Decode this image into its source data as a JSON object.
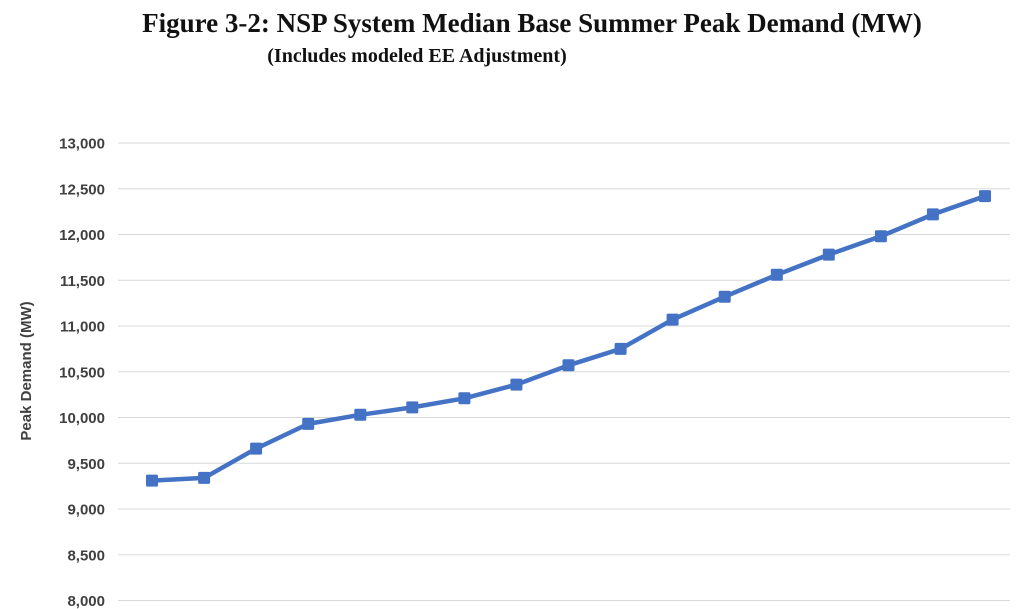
{
  "figure": {
    "title": "Figure 3-2: NSP System Median Base Summer Peak Demand (MW)",
    "subtitle": "(Includes modeled EE Adjustment)"
  },
  "chart_data": {
    "type": "line",
    "title": "Figure 3-2: NSP System Median Base Summer Peak Demand (MW)",
    "subtitle": "(Includes modeled EE Adjustment)",
    "ylabel": "Peak Demand (MW)",
    "xlabel": "",
    "ylim": [
      8000,
      13000
    ],
    "ytick_step": 500,
    "ytick_labels": [
      "8,000",
      "8,500",
      "9,000",
      "9,500",
      "10,000",
      "10,500",
      "11,000",
      "11,500",
      "12,000",
      "12,500",
      "13,000"
    ],
    "grid": true,
    "legend_position": "none",
    "marker": "square",
    "series": [
      {
        "name": "Median Base Summer Peak Demand",
        "values": [
          9310,
          9340,
          9660,
          9930,
          10030,
          10110,
          10210,
          10360,
          10570,
          10750,
          11070,
          11320,
          11560,
          11780,
          11980,
          12220,
          12420
        ]
      }
    ],
    "colors": {
      "line": "#4472C4",
      "grid": "#D9D9D9",
      "axis_text": "#404040"
    }
  }
}
